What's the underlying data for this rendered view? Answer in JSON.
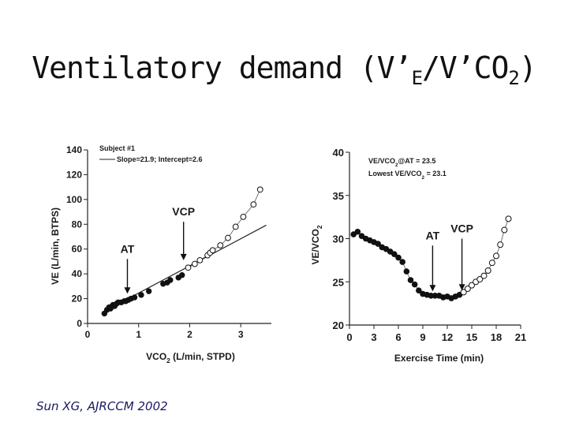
{
  "title": {
    "main": "Ventilatory demand (V’",
    "sub_e": "E",
    "middle": "/V’CO",
    "sub_2": "2",
    "close": ")"
  },
  "citation": "Sun XG, AJRCCM 2002",
  "chart_data": [
    {
      "type": "scatter",
      "title": "",
      "xlabel": "VCO2 (L/min, STPD)",
      "ylabel": "VE (L/min, BTPS)",
      "xlim": [
        0,
        3.6
      ],
      "ylim": [
        0,
        140
      ],
      "xticks": [
        0,
        1,
        2,
        3
      ],
      "yticks": [
        0,
        20,
        40,
        60,
        80,
        100,
        120,
        140
      ],
      "legend": {
        "subject": "Subject #1",
        "fit": "Slope=21.9; Intercept=2.6"
      },
      "fit_line": {
        "slope": 21.9,
        "intercept": 2.6,
        "x_range": [
          0.3,
          3.5
        ]
      },
      "series": [
        {
          "name": "below threshold",
          "marker": "filled",
          "x": [
            0.33,
            0.38,
            0.42,
            0.45,
            0.48,
            0.5,
            0.53,
            0.57,
            0.6,
            0.66,
            0.72,
            0.75,
            0.8,
            0.85,
            0.92,
            1.05,
            1.2,
            1.48,
            1.56,
            1.62,
            1.78,
            1.85
          ],
          "y": [
            8,
            11,
            13,
            12,
            14,
            15,
            14,
            16,
            17,
            17,
            18,
            18,
            19,
            20,
            21,
            23,
            26,
            32,
            33,
            35,
            37,
            39
          ]
        },
        {
          "name": "above threshold",
          "marker": "open",
          "x": [
            1.97,
            2.1,
            2.2,
            2.35,
            2.4,
            2.45,
            2.6,
            2.75,
            2.9,
            3.05,
            3.25,
            3.38
          ],
          "y": [
            45,
            48,
            51,
            55,
            57,
            59,
            63,
            69,
            78,
            86,
            96,
            108
          ]
        }
      ],
      "annotations": [
        {
          "label": "AT",
          "x": 0.78,
          "y_from": 52,
          "y_to": 24
        },
        {
          "label": "VCP",
          "x": 1.88,
          "y_from": 82,
          "y_to": 51
        }
      ]
    },
    {
      "type": "scatter",
      "title": "",
      "xlabel": "Exercise Time (min)",
      "ylabel": "VE/VCO2",
      "xlim": [
        0,
        21
      ],
      "ylim": [
        20,
        40
      ],
      "xticks": [
        0,
        3,
        6,
        9,
        12,
        15,
        18,
        21
      ],
      "yticks": [
        20,
        25,
        30,
        35,
        40
      ],
      "legend": {
        "line1": "VE/VCO2@AT = 23.5",
        "line2": "Lowest VE/VCO2 = 23.1"
      },
      "series": [
        {
          "name": "before VCP",
          "marker": "filled",
          "x": [
            0.5,
            1.0,
            1.5,
            2.0,
            2.5,
            3.0,
            3.5,
            4.0,
            4.5,
            5.0,
            5.5,
            6.0,
            6.5,
            7.0,
            7.5,
            8.0,
            8.5,
            9.0,
            9.5,
            10.0,
            10.5,
            11.0,
            11.5,
            12.0,
            12.5,
            13.0,
            13.5
          ],
          "y": [
            30.5,
            30.8,
            30.3,
            30.0,
            29.8,
            29.6,
            29.4,
            29.0,
            28.8,
            28.5,
            28.2,
            27.8,
            27.3,
            26.2,
            25.2,
            24.7,
            24.0,
            23.6,
            23.5,
            23.4,
            23.4,
            23.4,
            23.2,
            23.3,
            23.1,
            23.3,
            23.5
          ]
        },
        {
          "name": "after VCP",
          "marker": "open",
          "x": [
            14.0,
            14.5,
            15.0,
            15.5,
            16.0,
            16.5,
            17.0,
            17.5,
            18.0,
            18.5,
            19.0,
            19.5
          ],
          "y": [
            23.8,
            24.2,
            24.6,
            25.0,
            25.3,
            25.7,
            26.3,
            27.2,
            28.0,
            29.3,
            31.0,
            32.3
          ]
        }
      ],
      "annotations": [
        {
          "label": "AT",
          "x": 10.2,
          "y_from": 29.2,
          "y_to": 23.9
        },
        {
          "label": "VCP",
          "x": 13.8,
          "y_from": 30.0,
          "y_to": 24.0
        }
      ]
    }
  ]
}
